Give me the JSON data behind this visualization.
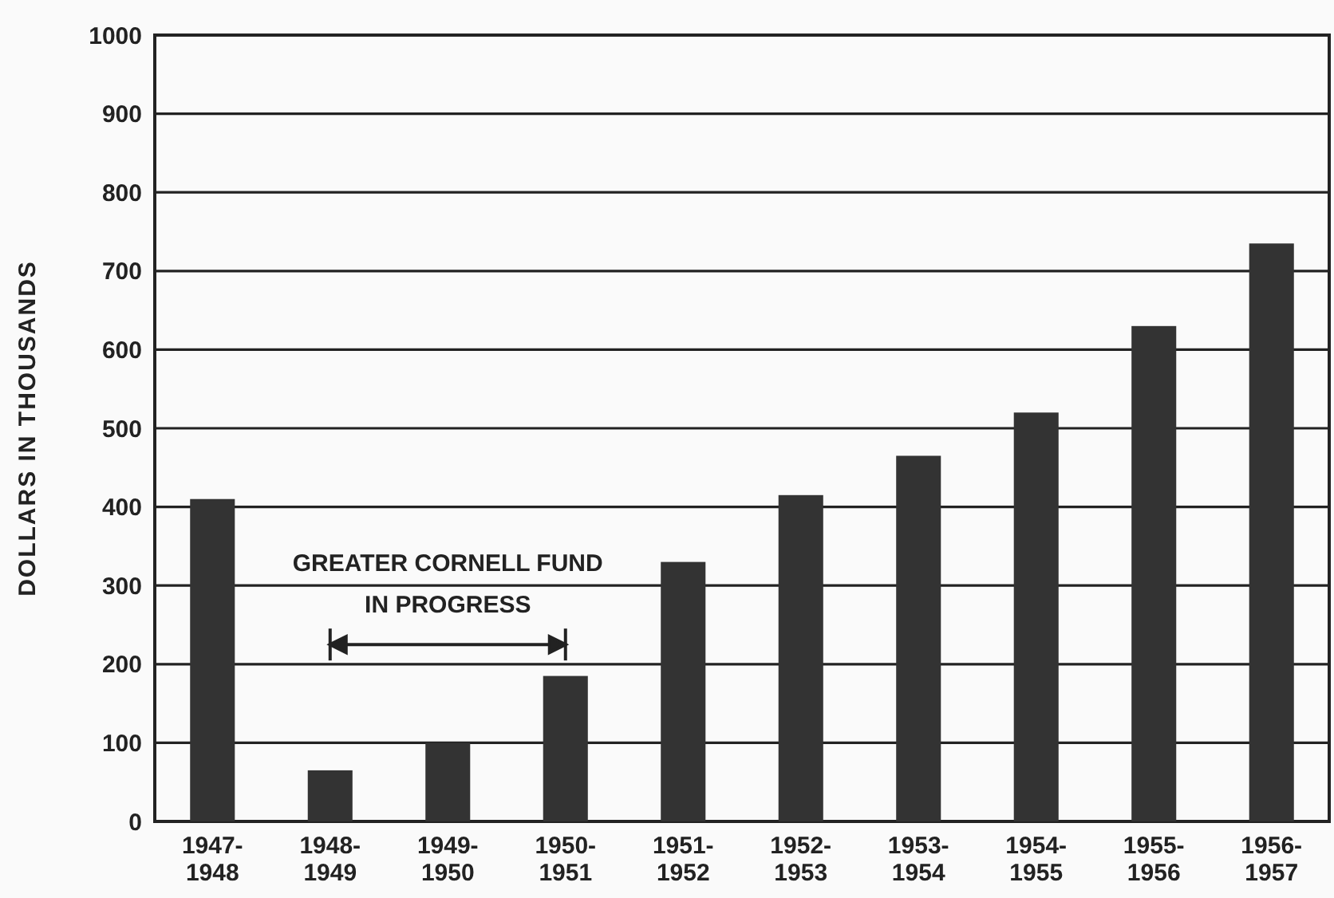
{
  "chart_data": {
    "type": "bar",
    "ylabel": "DOLLARS IN THOUSANDS",
    "categories": [
      "1947-1948",
      "1948-1949",
      "1949-1950",
      "1950-1951",
      "1951-1952",
      "1952-1953",
      "1953-1954",
      "1954-1955",
      "1955-1956",
      "1956-1957"
    ],
    "values": [
      410,
      65,
      100,
      185,
      330,
      415,
      465,
      520,
      630,
      735
    ],
    "color": "#333333",
    "ylim": [
      0,
      1000
    ],
    "yticks": [
      0,
      100,
      200,
      300,
      400,
      500,
      600,
      700,
      800,
      900,
      1000
    ],
    "grid": "y",
    "annotations": [
      "GREATER CORNELL FUND\nIN PROGRESS"
    ]
  }
}
